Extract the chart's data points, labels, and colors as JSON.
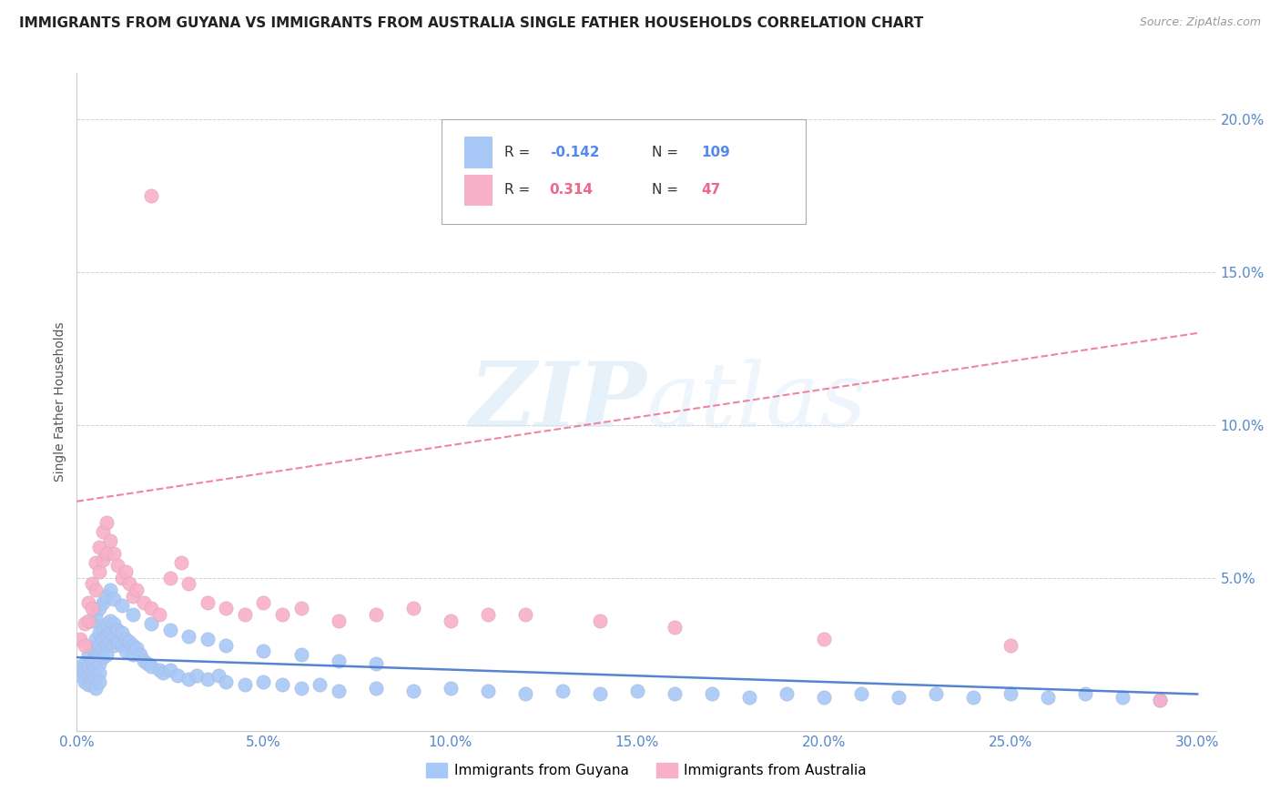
{
  "title": "IMMIGRANTS FROM GUYANA VS IMMIGRANTS FROM AUSTRALIA SINGLE FATHER HOUSEHOLDS CORRELATION CHART",
  "source": "Source: ZipAtlas.com",
  "ylabel": "Single Father Households",
  "xlim": [
    0.0,
    0.305
  ],
  "ylim": [
    0.0,
    0.215
  ],
  "xtick_labels": [
    "0.0%",
    "5.0%",
    "10.0%",
    "15.0%",
    "20.0%",
    "25.0%",
    "30.0%"
  ],
  "xtick_vals": [
    0.0,
    0.05,
    0.1,
    0.15,
    0.2,
    0.25,
    0.3
  ],
  "ytick_labels": [
    "5.0%",
    "10.0%",
    "15.0%",
    "20.0%"
  ],
  "ytick_vals": [
    0.05,
    0.1,
    0.15,
    0.2
  ],
  "series1_name": "Immigrants from Guyana",
  "series2_name": "Immigrants from Australia",
  "series1_color": "#a8c8f8",
  "series2_color": "#f8b0c8",
  "series1_line_color": "#4477cc",
  "series2_line_color": "#ee6688",
  "watermark_color": "#d8e8f8",
  "background_color": "#ffffff",
  "grid_color": "#cccccc",
  "title_fontsize": 11,
  "source_fontsize": 9,
  "legend_r1": "-0.142",
  "legend_n1": "109",
  "legend_r2": "0.314",
  "legend_n2": "47",
  "legend_color1": "#5588ee",
  "legend_color2": "#ee6688",
  "guyana_x": [
    0.001,
    0.001,
    0.002,
    0.002,
    0.002,
    0.003,
    0.003,
    0.003,
    0.003,
    0.004,
    0.004,
    0.004,
    0.004,
    0.004,
    0.005,
    0.005,
    0.005,
    0.005,
    0.005,
    0.005,
    0.006,
    0.006,
    0.006,
    0.006,
    0.006,
    0.006,
    0.007,
    0.007,
    0.007,
    0.007,
    0.008,
    0.008,
    0.008,
    0.008,
    0.009,
    0.009,
    0.009,
    0.01,
    0.01,
    0.01,
    0.011,
    0.011,
    0.012,
    0.012,
    0.013,
    0.013,
    0.014,
    0.015,
    0.015,
    0.016,
    0.017,
    0.018,
    0.019,
    0.02,
    0.022,
    0.023,
    0.025,
    0.027,
    0.03,
    0.032,
    0.035,
    0.038,
    0.04,
    0.045,
    0.05,
    0.055,
    0.06,
    0.065,
    0.07,
    0.08,
    0.09,
    0.1,
    0.11,
    0.12,
    0.13,
    0.14,
    0.15,
    0.16,
    0.17,
    0.18,
    0.19,
    0.2,
    0.21,
    0.22,
    0.23,
    0.24,
    0.25,
    0.26,
    0.27,
    0.28,
    0.004,
    0.005,
    0.006,
    0.007,
    0.008,
    0.009,
    0.01,
    0.012,
    0.015,
    0.02,
    0.025,
    0.03,
    0.035,
    0.04,
    0.05,
    0.06,
    0.07,
    0.08,
    0.29
  ],
  "guyana_y": [
    0.021,
    0.018,
    0.022,
    0.019,
    0.016,
    0.025,
    0.021,
    0.018,
    0.015,
    0.027,
    0.023,
    0.02,
    0.017,
    0.015,
    0.03,
    0.026,
    0.023,
    0.02,
    0.017,
    0.014,
    0.032,
    0.028,
    0.025,
    0.022,
    0.019,
    0.016,
    0.034,
    0.03,
    0.027,
    0.024,
    0.035,
    0.031,
    0.028,
    0.025,
    0.036,
    0.032,
    0.029,
    0.035,
    0.031,
    0.028,
    0.033,
    0.029,
    0.032,
    0.028,
    0.03,
    0.026,
    0.029,
    0.028,
    0.025,
    0.027,
    0.025,
    0.023,
    0.022,
    0.021,
    0.02,
    0.019,
    0.02,
    0.018,
    0.017,
    0.018,
    0.017,
    0.018,
    0.016,
    0.015,
    0.016,
    0.015,
    0.014,
    0.015,
    0.013,
    0.014,
    0.013,
    0.014,
    0.013,
    0.012,
    0.013,
    0.012,
    0.013,
    0.012,
    0.012,
    0.011,
    0.012,
    0.011,
    0.012,
    0.011,
    0.012,
    0.011,
    0.012,
    0.011,
    0.012,
    0.011,
    0.036,
    0.038,
    0.04,
    0.042,
    0.044,
    0.046,
    0.043,
    0.041,
    0.038,
    0.035,
    0.033,
    0.031,
    0.03,
    0.028,
    0.026,
    0.025,
    0.023,
    0.022,
    0.01
  ],
  "australia_x": [
    0.001,
    0.002,
    0.002,
    0.003,
    0.003,
    0.004,
    0.004,
    0.005,
    0.005,
    0.006,
    0.006,
    0.007,
    0.007,
    0.008,
    0.008,
    0.009,
    0.01,
    0.011,
    0.012,
    0.013,
    0.014,
    0.015,
    0.016,
    0.018,
    0.02,
    0.022,
    0.025,
    0.028,
    0.03,
    0.035,
    0.04,
    0.045,
    0.05,
    0.055,
    0.06,
    0.07,
    0.08,
    0.09,
    0.1,
    0.11,
    0.12,
    0.14,
    0.16,
    0.2,
    0.25,
    0.29,
    0.02
  ],
  "australia_y": [
    0.03,
    0.035,
    0.028,
    0.042,
    0.036,
    0.048,
    0.04,
    0.055,
    0.046,
    0.06,
    0.052,
    0.065,
    0.056,
    0.068,
    0.058,
    0.062,
    0.058,
    0.054,
    0.05,
    0.052,
    0.048,
    0.044,
    0.046,
    0.042,
    0.04,
    0.038,
    0.05,
    0.055,
    0.048,
    0.042,
    0.04,
    0.038,
    0.042,
    0.038,
    0.04,
    0.036,
    0.038,
    0.04,
    0.036,
    0.038,
    0.038,
    0.036,
    0.034,
    0.03,
    0.028,
    0.01,
    0.175
  ]
}
